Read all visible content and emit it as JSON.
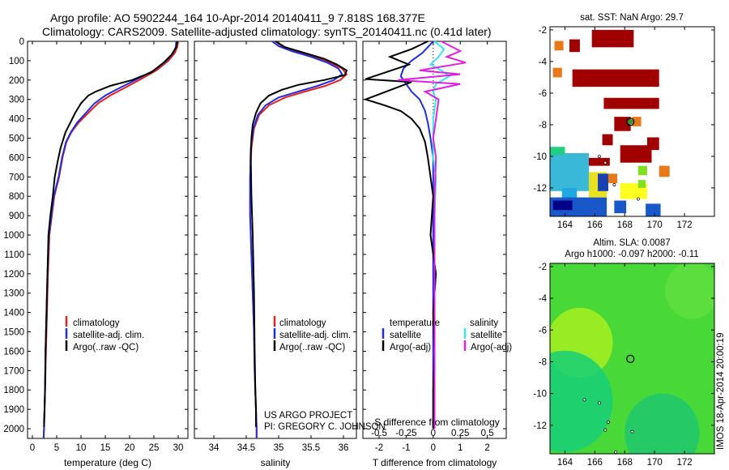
{
  "header": {
    "title_line1": "Argo profile: AO 5902244_164 10-Apr-2014 20140411_9 7.818S 168.377E",
    "title_line2": "Climatology: CARS2009. Satellite-adjusted climatology: synTS_20140411.nc (0.41d later)"
  },
  "colors": {
    "red": "#e8201c",
    "blue": "#1c2ee0",
    "black": "#000000",
    "cyan": "#33e6f0",
    "magenta": "#e020e0"
  },
  "depth_axis": {
    "min": 0,
    "max": 2050,
    "ticks": [
      0,
      100,
      200,
      300,
      400,
      500,
      600,
      700,
      800,
      900,
      1000,
      1100,
      1200,
      1300,
      1400,
      1500,
      1600,
      1700,
      1800,
      1900,
      2000
    ]
  },
  "legend_labels": {
    "climatology": "climatology",
    "satellite_adj": "satellite-adj. clim.",
    "argo_raw": "Argo(..raw -QC)",
    "temperature": "temperature",
    "salinity": "salinity",
    "satellite": "satellite",
    "argo_adj": "Argo(-adj)"
  },
  "project": {
    "line1": "US ARGO PROJECT",
    "line2": "PI: GREGORY C. JOHNSON"
  },
  "footer_stamp": "IMOS 18-Apr-2014 20:00:19",
  "chart_data": [
    {
      "type": "line",
      "id": "temperature",
      "xlabel": "temperature (deg C)",
      "xlim": [
        -1,
        32
      ],
      "xticks": [
        0,
        5,
        10,
        15,
        20,
        25,
        30
      ],
      "ylim": [
        2050,
        0
      ],
      "series": [
        {
          "name": "climatology",
          "color": "red",
          "x": [
            30,
            29.8,
            29.3,
            28,
            25.5,
            22,
            19,
            16,
            13.5,
            11.5,
            9.5,
            8,
            7,
            6.2,
            5.5,
            4.5,
            4,
            3.5,
            3.2,
            3,
            2.8,
            2.6,
            2.5,
            2.4,
            2.3
          ],
          "y": [
            0,
            30,
            60,
            100,
            150,
            200,
            240,
            280,
            320,
            370,
            420,
            470,
            520,
            600,
            700,
            800,
            900,
            1000,
            1200,
            1400,
            1600,
            1800,
            1900,
            2000,
            2050
          ]
        },
        {
          "name": "satellite-adj. clim.",
          "color": "blue",
          "x": [
            29.6,
            29.5,
            29,
            27.6,
            25,
            21.2,
            18,
            15,
            12.8,
            11,
            9.2,
            7.9,
            6.9,
            6.1,
            5.4,
            4.4,
            3.9,
            3.4,
            3.1,
            2.9,
            2.7,
            2.6,
            2.5,
            2.4,
            2.3
          ],
          "y": [
            0,
            30,
            60,
            100,
            150,
            200,
            240,
            280,
            320,
            370,
            420,
            470,
            520,
            600,
            700,
            800,
            900,
            1000,
            1200,
            1400,
            1600,
            1800,
            1900,
            2000,
            2050
          ]
        },
        {
          "name": "Argo(..raw -QC)",
          "color": "black",
          "x": [
            29.8,
            29.6,
            28.6,
            27,
            24.5,
            20.5,
            16,
            13,
            11.5,
            10,
            8.8,
            7.8,
            6.8,
            5.8,
            5.2,
            4.6,
            4.2,
            3.7,
            3.3,
            3.1,
            2.9,
            2.7,
            2.6,
            2.5,
            2.4,
            2.4
          ],
          "y": [
            0,
            30,
            70,
            110,
            160,
            200,
            230,
            260,
            280,
            320,
            370,
            420,
            470,
            550,
            620,
            700,
            800,
            900,
            1000,
            1200,
            1400,
            1600,
            1800,
            1900,
            1960,
            1990
          ]
        }
      ]
    },
    {
      "type": "line",
      "id": "salinity",
      "xlabel": "salinity",
      "xlim": [
        33.7,
        36.2
      ],
      "xticks": [
        34,
        34.5,
        35,
        35.5,
        36
      ],
      "ylim": [
        2050,
        0
      ],
      "series": [
        {
          "name": "climatology",
          "color": "red",
          "x": [
            34.95,
            35.05,
            35.25,
            35.55,
            35.8,
            35.98,
            36.05,
            35.95,
            35.72,
            35.4,
            35.1,
            34.85,
            34.7,
            34.62,
            34.58,
            34.56,
            34.56,
            34.58,
            34.6,
            34.62,
            34.63,
            34.64,
            34.65,
            34.66,
            34.66
          ],
          "y": [
            0,
            25,
            50,
            80,
            110,
            140,
            170,
            200,
            230,
            260,
            290,
            330,
            380,
            450,
            550,
            700,
            900,
            1100,
            1300,
            1500,
            1700,
            1800,
            1900,
            2000,
            2050
          ]
        },
        {
          "name": "satellite-adj. clim.",
          "color": "blue",
          "x": [
            34.9,
            35.0,
            35.2,
            35.5,
            35.75,
            35.92,
            35.98,
            35.85,
            35.6,
            35.3,
            35.0,
            34.8,
            34.68,
            34.61,
            34.57,
            34.56,
            34.56,
            34.58,
            34.6,
            34.62,
            34.63,
            34.64,
            34.65,
            34.66,
            34.66
          ],
          "y": [
            0,
            25,
            50,
            80,
            110,
            140,
            170,
            200,
            230,
            260,
            290,
            330,
            380,
            450,
            550,
            700,
            900,
            1100,
            1300,
            1500,
            1700,
            1800,
            1900,
            2000,
            2050
          ]
        },
        {
          "name": "Argo(..raw -QC)",
          "color": "black",
          "x": [
            34.95,
            35.1,
            35.4,
            35.7,
            35.9,
            36.05,
            36.02,
            35.7,
            35.3,
            35.05,
            34.85,
            34.72,
            34.65,
            34.6,
            34.58,
            34.57,
            34.58,
            34.6,
            34.62,
            34.63,
            34.64,
            34.65,
            34.65
          ],
          "y": [
            0,
            30,
            60,
            90,
            120,
            150,
            175,
            200,
            225,
            250,
            280,
            320,
            370,
            430,
            500,
            600,
            800,
            1000,
            1300,
            1600,
            1800,
            1900,
            1990
          ]
        }
      ]
    },
    {
      "type": "line",
      "id": "difference",
      "xlabel": "T difference from climatology",
      "xlabel_top": "S difference from climatology",
      "xlim": [
        -2.6,
        2.7
      ],
      "xticks": [
        -2,
        -1,
        0,
        1,
        2
      ],
      "xticks_top": [
        {
          "label": "-0.5",
          "pos": -2
        },
        {
          "label": "-0.25",
          "pos": -1
        },
        {
          "label": "0",
          "pos": 0
        },
        {
          "label": "0.25",
          "pos": 1
        },
        {
          "label": "0.5",
          "pos": 2
        }
      ],
      "ylim": [
        2050,
        0
      ],
      "series": [
        {
          "name": "temperature satellite",
          "color": "blue",
          "x": [
            0,
            -0.2,
            -0.4,
            -0.8,
            -1.1,
            -1.2,
            -1.0,
            -0.8,
            -0.5,
            -0.3,
            -0.2,
            -0.1,
            0,
            0,
            0,
            0,
            0,
            0,
            0,
            0,
            0
          ],
          "y": [
            0,
            30,
            60,
            100,
            140,
            180,
            220,
            260,
            300,
            360,
            420,
            500,
            600,
            800,
            1000,
            1200,
            1400,
            1600,
            1800,
            1950,
            2000
          ]
        },
        {
          "name": "temperature Argo(-adj)",
          "color": "black",
          "x": [
            -0.2,
            -0.8,
            -1.6,
            -0.9,
            -2.5,
            -0.8,
            -2.5,
            -1.8,
            -1.2,
            -0.8,
            -0.5,
            -0.3,
            -0.2,
            -0.1,
            0,
            -0.1,
            0.1,
            0,
            0.05,
            0,
            0
          ],
          "y": [
            0,
            40,
            80,
            120,
            195,
            210,
            300,
            330,
            360,
            400,
            450,
            520,
            600,
            700,
            800,
            1000,
            1200,
            1400,
            1600,
            1800,
            2000
          ]
        },
        {
          "name": "salinity satellite",
          "color": "cyan",
          "x": [
            0.05,
            0.4,
            0.2,
            -0.1,
            0.3,
            0.6,
            0.1,
            0,
            0.1,
            0,
            0,
            0,
            0.1,
            0.05,
            0.05,
            0.05,
            0.05,
            0.05
          ],
          "y": [
            0,
            40,
            80,
            120,
            150,
            180,
            220,
            260,
            300,
            400,
            500,
            600,
            700,
            900,
            1200,
            1500,
            1800,
            2000
          ]
        },
        {
          "name": "salinity Argo(-adj)",
          "color": "magenta",
          "x": [
            0.3,
            1.0,
            0.5,
            1.2,
            -0.5,
            1.0,
            -1.3,
            1.0,
            -0.3,
            0.2,
            0.1,
            0,
            0.1,
            0.05,
            0.05,
            0.05,
            0.05,
            0.05
          ],
          "y": [
            0,
            50,
            80,
            110,
            150,
            170,
            200,
            220,
            260,
            300,
            400,
            500,
            600,
            800,
            1100,
            1400,
            1700,
            2000
          ]
        }
      ]
    },
    {
      "type": "heatmap",
      "id": "sst_map",
      "title": "sat. SST: NaN Argo: 29.7",
      "xlim": [
        163,
        174
      ],
      "ylim": [
        -13.8,
        -1.8
      ],
      "xticks": [
        164,
        166,
        168,
        170,
        172
      ],
      "yticks": [
        -2,
        -4,
        -6,
        -8,
        -10,
        -12
      ],
      "argo_marker": {
        "lon": 168.377,
        "lat": -7.818
      },
      "blocks": [
        {
          "lon": [
            163.3,
            163.9
          ],
          "lat": [
            -2.7,
            -3.3
          ],
          "c": "#e87818"
        },
        {
          "lon": [
            164.3,
            165.0
          ],
          "lat": [
            -2.6,
            -3.4
          ],
          "c": "#a00000"
        },
        {
          "lon": [
            165.8,
            168.6
          ],
          "lat": [
            -2.0,
            -3.1
          ],
          "c": "#a00000"
        },
        {
          "lon": [
            163.2,
            163.8
          ],
          "lat": [
            -4.4,
            -5.0
          ],
          "c": "#e87818"
        },
        {
          "lon": [
            164.5,
            170.3
          ],
          "lat": [
            -4.5,
            -5.6
          ],
          "c": "#a00000"
        },
        {
          "lon": [
            166.6,
            170.3
          ],
          "lat": [
            -6.3,
            -7.0
          ],
          "c": "#a00000"
        },
        {
          "lon": [
            167.3,
            168.4
          ],
          "lat": [
            -7.5,
            -8.4
          ],
          "c": "#a00000"
        },
        {
          "lon": [
            168.5,
            169.1
          ],
          "lat": [
            -7.5,
            -8.1
          ],
          "c": "#e87818"
        },
        {
          "lon": [
            166.5,
            167.2
          ],
          "lat": [
            -8.6,
            -9.3
          ],
          "c": "#a00000"
        },
        {
          "lon": [
            169.5,
            170.3
          ],
          "lat": [
            -8.8,
            -9.6
          ],
          "c": "#a00000"
        },
        {
          "lon": [
            167.7,
            169.8
          ],
          "lat": [
            -9.3,
            -10.4
          ],
          "c": "#a00000"
        },
        {
          "lon": [
            165.2,
            167.0
          ],
          "lat": [
            -10.1,
            -10.6
          ],
          "c": "#a00000"
        },
        {
          "lon": [
            165.0,
            165.5
          ],
          "lat": [
            -10.6,
            -11.3
          ],
          "c": "#e87818"
        },
        {
          "lon": [
            163.0,
            165.6
          ],
          "lat": [
            -9.8,
            -12.2
          ],
          "c": "#3ab8d8"
        },
        {
          "lon": [
            163.0,
            164.0
          ],
          "lat": [
            -9.4,
            -9.9
          ],
          "c": "#20d080"
        },
        {
          "lon": [
            163.8,
            164.8
          ],
          "lat": [
            -12.0,
            -12.7
          ],
          "c": "#20a8e0"
        },
        {
          "lon": [
            163.0,
            166.8
          ],
          "lat": [
            -12.6,
            -13.8
          ],
          "c": "#1858c8"
        },
        {
          "lon": [
            163.2,
            164.5
          ],
          "lat": [
            -12.8,
            -13.4
          ],
          "c": "#000088"
        },
        {
          "lon": [
            165.6,
            166.8
          ],
          "lat": [
            -11.0,
            -12.6
          ],
          "c": "#e8e020"
        },
        {
          "lon": [
            166.2,
            166.9
          ],
          "lat": [
            -11.1,
            -12.2
          ],
          "c": "#1840b0"
        },
        {
          "lon": [
            166.9,
            167.5
          ],
          "lat": [
            -11.1,
            -11.7
          ],
          "c": "#e87818"
        },
        {
          "lon": [
            167.7,
            169.5
          ],
          "lat": [
            -11.7,
            -12.7
          ],
          "c": "#ffff20"
        },
        {
          "lon": [
            168.9,
            169.4
          ],
          "lat": [
            -11.5,
            -12.0
          ],
          "c": "#80e020"
        },
        {
          "lon": [
            168.9,
            169.5
          ],
          "lat": [
            -10.6,
            -11.2
          ],
          "c": "#80e020"
        },
        {
          "lon": [
            170.3,
            171.0
          ],
          "lat": [
            -10.6,
            -11.3
          ],
          "c": "#e87818"
        },
        {
          "lon": [
            169.4,
            170.4
          ],
          "lat": [
            -13.0,
            -13.8
          ],
          "c": "#1858c8"
        },
        {
          "lon": [
            167.3,
            168.1
          ],
          "lat": [
            -12.8,
            -13.6
          ],
          "c": "#1858c8"
        }
      ]
    },
    {
      "type": "heatmap",
      "id": "sla_map",
      "title_line1": "Altim. SLA: 0.0087",
      "title_line2": "Argo h1000: -0.097 h2000: -0.11",
      "xlim": [
        163,
        174
      ],
      "ylim": [
        -13.8,
        -1.8
      ],
      "xticks": [
        164,
        166,
        168,
        170,
        172
      ],
      "yticks": [
        -2,
        -4,
        -6,
        -8,
        -10,
        -12
      ],
      "argo_marker": {
        "lon": 168.377,
        "lat": -7.818
      },
      "blobs": [
        {
          "lon": 165.0,
          "lat": -6.8,
          "r": 2.2,
          "c": "#a8f020"
        },
        {
          "lon": 164.0,
          "lat": -10.5,
          "r": 3.2,
          "c": "#18d078"
        },
        {
          "lon": 170.5,
          "lat": -12.5,
          "r": 2.5,
          "c": "#20c870"
        },
        {
          "lon": 172.5,
          "lat": -3.5,
          "r": 1.8,
          "c": "#60e040"
        }
      ]
    }
  ]
}
